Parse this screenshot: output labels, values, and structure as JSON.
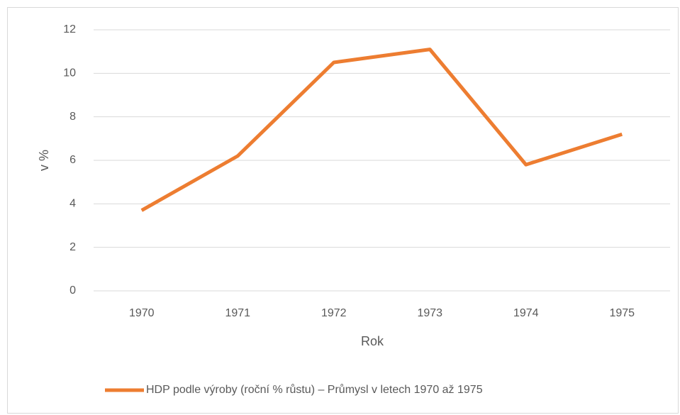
{
  "chart_data": {
    "type": "line",
    "categories": [
      "1970",
      "1971",
      "1972",
      "1973",
      "1974",
      "1975"
    ],
    "series": [
      {
        "name": "HDP podle výroby (roční % růstu) – Průmysl v letech 1970 až 1975",
        "color": "#ed7d31",
        "values": [
          3.7,
          6.2,
          10.5,
          11.1,
          5.8,
          7.2
        ]
      }
    ],
    "x_label": "Rok",
    "y_label": "v %",
    "ylim": [
      0,
      12
    ],
    "yticks": [
      0,
      2,
      4,
      6,
      8,
      10,
      12
    ],
    "grid": true,
    "legend": "bottom"
  }
}
